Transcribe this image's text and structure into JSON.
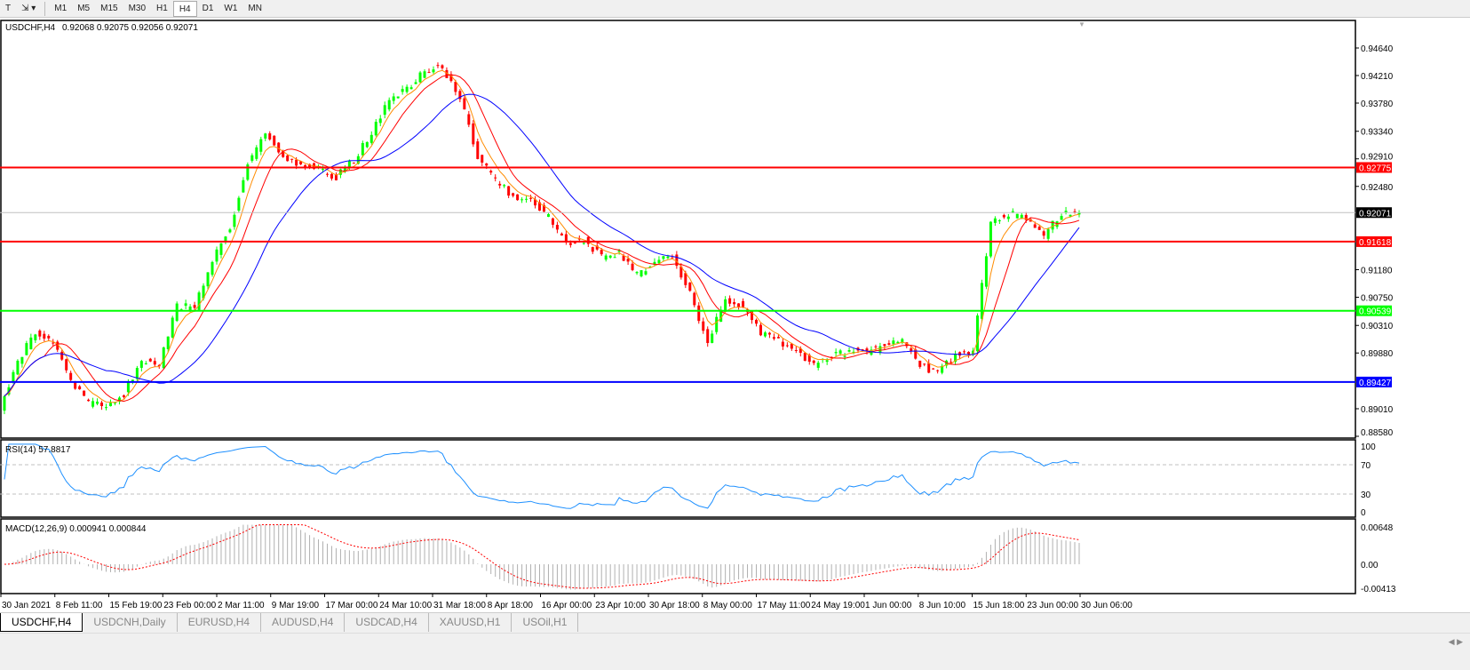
{
  "toolbar": {
    "timeframes": [
      "M1",
      "M5",
      "M15",
      "M30",
      "H1",
      "H4",
      "D1",
      "W1",
      "MN"
    ],
    "active": "H4"
  },
  "header": {
    "symbol": "USDCHF,H4",
    "ohlc": "0.92068 0.92075 0.92056 0.92071"
  },
  "price_axis": [
    "0.94640",
    "0.94210",
    "0.93780",
    "0.93340",
    "0.92910",
    "0.92480",
    "0.91180",
    "0.90750",
    "0.90310",
    "0.89880",
    "0.89010",
    "0.88580"
  ],
  "levels": [
    {
      "value": "0.92775",
      "color": "#ff0000"
    },
    {
      "value": "0.92071",
      "color": "#000000",
      "bid": true
    },
    {
      "value": "0.91618",
      "color": "#ff0000"
    },
    {
      "value": "0.90539",
      "color": "#00ff00"
    },
    {
      "value": "0.89427",
      "color": "#0000ff"
    }
  ],
  "rsi": {
    "label": "RSI(14) 57.8817",
    "axis": [
      "100",
      "70",
      "30",
      "0"
    ],
    "color": "#1e90ff"
  },
  "macd": {
    "label": "MACD(12,26,9) 0.000941 0.000844",
    "axis": [
      "0.00648",
      "0.00",
      "-0.00413"
    ],
    "signal_color": "#ff0000",
    "hist_color": "#b0b0b0"
  },
  "time_axis": [
    "30 Jan 2021",
    "8 Feb 11:00",
    "15 Feb 19:00",
    "23 Feb 00:00",
    "2 Mar 11:00",
    "9 Mar 19:00",
    "17 Mar 00:00",
    "24 Mar 10:00",
    "31 Mar 18:00",
    "8 Apr 18:00",
    "16 Apr 00:00",
    "23 Apr 10:00",
    "30 Apr 18:00",
    "8 May 00:00",
    "17 May 11:00",
    "24 May 19:00",
    "1 Jun 00:00",
    "8 Jun 10:00",
    "15 Jun 18:00",
    "23 Jun 00:00",
    "30 Jun 06:00"
  ],
  "tabs": [
    "USDCHF,H4",
    "USDCNH,Daily",
    "EURUSD,H4",
    "AUDUSD,H4",
    "USDCAD,H4",
    "XAUUSD,H1",
    "USOil,H1"
  ],
  "active_tab": "USDCHF,H4",
  "colors": {
    "bull": "#00ff00",
    "bear": "#ff0000",
    "ma_fast": "#ff8c00",
    "ma_mid": "#ff0000",
    "ma_slow": "#0000ff"
  },
  "chart_data": {
    "type": "candlestick",
    "symbol": "USDCHF",
    "timeframe": "H4",
    "ylim": [
      0.8858,
      0.9475
    ],
    "approx_closes": [
      0.8901,
      0.8977,
      0.9019,
      0.9005,
      0.8943,
      0.8908,
      0.8908,
      0.8925,
      0.8977,
      0.897,
      0.906,
      0.906,
      0.913,
      0.9185,
      0.9282,
      0.9331,
      0.9296,
      0.9282,
      0.9275,
      0.9262,
      0.9289,
      0.9331,
      0.9386,
      0.94,
      0.9428,
      0.9435,
      0.9386,
      0.9296,
      0.9255,
      0.9234,
      0.9227,
      0.9199,
      0.9158,
      0.9164,
      0.9137,
      0.9144,
      0.9109,
      0.913,
      0.9137,
      0.9081,
      0.9005,
      0.9074,
      0.906,
      0.9019,
      0.9005,
      0.8991,
      0.897,
      0.8984,
      0.8991,
      0.8991,
      0.8998,
      0.901,
      0.897,
      0.8956,
      0.8984,
      0.8991,
      0.9192,
      0.9206,
      0.9199,
      0.9171,
      0.9206,
      0.92071
    ],
    "rsi_levels": [
      70,
      30
    ],
    "rsi_ylim": [
      0,
      100
    ],
    "macd_ylim": [
      -0.00413,
      0.00648
    ]
  }
}
